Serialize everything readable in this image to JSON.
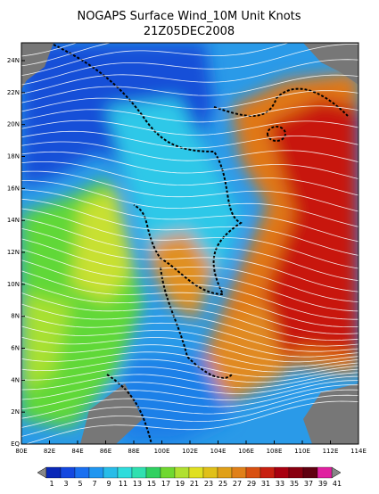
{
  "title": "NOGAPS Surface Wind_10M Unit Knots",
  "subtitle": "21Z05DEC2008",
  "lat_labels": [
    "24N",
    "22N",
    "20N",
    "18N",
    "16N",
    "14N",
    "12N",
    "10N",
    "8N",
    "6N",
    "4N",
    "2N",
    "EQ"
  ],
  "lon_labels": [
    "80E",
    "82E",
    "84E",
    "86E",
    "88E",
    "100E",
    "102E",
    "104E",
    "106E",
    "108E",
    "110E",
    "112E",
    "114E"
  ],
  "colorbar": {
    "labels": [
      1,
      3,
      5,
      7,
      9,
      11,
      13,
      15,
      17,
      19,
      21,
      23,
      25,
      27,
      29,
      31,
      33,
      35,
      37,
      39,
      41
    ],
    "colors": [
      "#0a28b8",
      "#1448e0",
      "#1a70f0",
      "#2096f0",
      "#28bce8",
      "#30dcdc",
      "#30e0b0",
      "#30d060",
      "#70d830",
      "#b0e030",
      "#e0e020",
      "#e0c018",
      "#e0a018",
      "#e08018",
      "#d85010",
      "#c82010",
      "#a80010",
      "#880010",
      "#600010",
      "#e020a0"
    ]
  }
}
